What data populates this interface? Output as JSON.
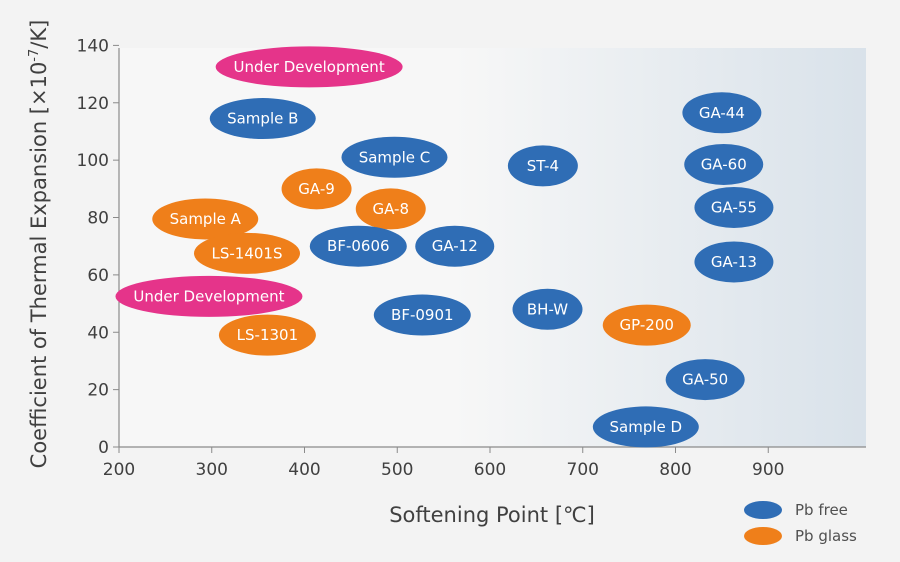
{
  "chart_data": {
    "type": "scatter",
    "xlabel": "Softening Point [℃]",
    "ylabel": "Coefficient of Thermal Expansion [×10",
    "ylabel_sup": "-7",
    "ylabel_tail": "/K]",
    "xlim": [
      200,
      1000
    ],
    "ylim": [
      0,
      140
    ],
    "xticks": [
      200,
      300,
      400,
      500,
      600,
      700,
      800,
      900
    ],
    "yticks": [
      0,
      20,
      40,
      60,
      80,
      100,
      120,
      140
    ],
    "colors": {
      "pb_free": "#2f6db5",
      "pb_glass": "#ef7f1a",
      "development": "#e5348a",
      "gradient_start": "#f7f7f7",
      "gradient_end": "#d9e2ea",
      "axis": "#8a8a8a"
    },
    "legend": [
      {
        "key": "pb_free",
        "label": "Pb free"
      },
      {
        "key": "pb_glass",
        "label": "Pb glass"
      }
    ],
    "points": [
      {
        "label": "Under Development",
        "x": 405,
        "y": 132.5,
        "group": "development"
      },
      {
        "label": "Sample B",
        "x": 355,
        "y": 114.5,
        "group": "pb_free"
      },
      {
        "label": "GA-44",
        "x": 850,
        "y": 116.5,
        "group": "pb_free"
      },
      {
        "label": "Sample C",
        "x": 497,
        "y": 101,
        "group": "pb_free"
      },
      {
        "label": "ST-4",
        "x": 657,
        "y": 98,
        "group": "pb_free"
      },
      {
        "label": "GA-60",
        "x": 852,
        "y": 98.5,
        "group": "pb_free"
      },
      {
        "label": "GA-9",
        "x": 413,
        "y": 90,
        "group": "pb_glass"
      },
      {
        "label": "GA-8",
        "x": 493,
        "y": 83,
        "group": "pb_glass"
      },
      {
        "label": "GA-55",
        "x": 863,
        "y": 83.5,
        "group": "pb_free"
      },
      {
        "label": "Sample A",
        "x": 293,
        "y": 79.5,
        "group": "pb_glass"
      },
      {
        "label": "BF-0606",
        "x": 458,
        "y": 70,
        "group": "pb_free"
      },
      {
        "label": "GA-12",
        "x": 562,
        "y": 70,
        "group": "pb_free"
      },
      {
        "label": "LS-1401S",
        "x": 338,
        "y": 67.5,
        "group": "pb_glass"
      },
      {
        "label": "GA-13",
        "x": 863,
        "y": 64.5,
        "group": "pb_free"
      },
      {
        "label": "Under Development",
        "x": 297,
        "y": 52.5,
        "group": "development"
      },
      {
        "label": "BH-W",
        "x": 662,
        "y": 48,
        "group": "pb_free"
      },
      {
        "label": "BF-0901",
        "x": 527,
        "y": 46,
        "group": "pb_free"
      },
      {
        "label": "GP-200",
        "x": 769,
        "y": 42.5,
        "group": "pb_glass"
      },
      {
        "label": "LS-1301",
        "x": 360,
        "y": 39,
        "group": "pb_glass"
      },
      {
        "label": "GA-50",
        "x": 832,
        "y": 23.5,
        "group": "pb_free"
      },
      {
        "label": "Sample D",
        "x": 768,
        "y": 7,
        "group": "pb_free"
      }
    ]
  }
}
